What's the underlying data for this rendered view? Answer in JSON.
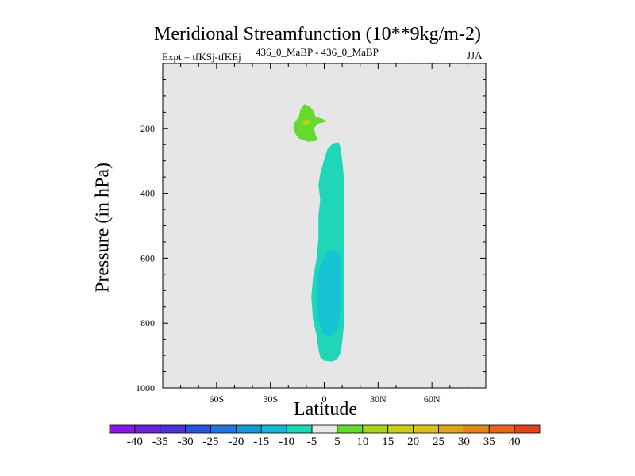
{
  "chart_data": {
    "type": "contour",
    "title": "Meridional Streamfunction (10**9kg/m-2)",
    "left_label": "Expt = tfKSj-tfKEj",
    "center_label": "436_0_MaBP - 436_0_MaBP",
    "right_label": "JJA",
    "xlabel": "Latitude",
    "ylabel": "Pressure (in hPa)",
    "xlim": [
      -90,
      90
    ],
    "ylim": [
      1000,
      0
    ],
    "x_ticks": [
      {
        "value": -60,
        "label": "60S"
      },
      {
        "value": -30,
        "label": "30S"
      },
      {
        "value": 0,
        "label": "0"
      },
      {
        "value": 30,
        "label": "30N"
      },
      {
        "value": 60,
        "label": "60N"
      }
    ],
    "y_ticks": [
      {
        "value": 200,
        "label": "200"
      },
      {
        "value": 400,
        "label": "400"
      },
      {
        "value": 600,
        "label": "600"
      },
      {
        "value": 800,
        "label": "800"
      },
      {
        "value": 1000,
        "label": "1000"
      }
    ],
    "background_color": "#e6e6e6",
    "contour_regions": [
      {
        "level": "5 to 10",
        "color": "#66d92e",
        "points": [
          [
            -16,
            180
          ],
          [
            -14,
            165
          ],
          [
            -13,
            142
          ],
          [
            -11,
            127
          ],
          [
            -8,
            133
          ],
          [
            -6,
            150
          ],
          [
            -5,
            165
          ],
          [
            -1,
            172
          ],
          [
            1,
            178
          ],
          [
            -4,
            185
          ],
          [
            -6,
            200
          ],
          [
            -5,
            220
          ],
          [
            -4,
            237
          ],
          [
            -9,
            240
          ],
          [
            -14,
            230
          ],
          [
            -16,
            215
          ],
          [
            -17,
            197
          ]
        ]
      },
      {
        "level": "10 to 15",
        "color": "#a9d41f",
        "points": [
          [
            -12,
            178
          ],
          [
            -10,
            172
          ],
          [
            -8,
            176
          ],
          [
            -8,
            183
          ],
          [
            -10,
            188
          ],
          [
            -12,
            186
          ]
        ]
      },
      {
        "level": "-10 to -5",
        "color": "#1fd6b9",
        "points": [
          [
            8,
            245
          ],
          [
            9,
            265
          ],
          [
            10,
            310
          ],
          [
            11,
            370
          ],
          [
            11,
            440
          ],
          [
            11,
            530
          ],
          [
            11,
            620
          ],
          [
            11,
            700
          ],
          [
            11,
            790
          ],
          [
            10,
            850
          ],
          [
            9,
            890
          ],
          [
            7,
            912
          ],
          [
            4,
            917
          ],
          [
            0,
            915
          ],
          [
            -2,
            905
          ],
          [
            -3,
            880
          ],
          [
            -4,
            840
          ],
          [
            -6,
            790
          ],
          [
            -7,
            720
          ],
          [
            -6,
            660
          ],
          [
            -4,
            600
          ],
          [
            -3,
            540
          ],
          [
            -3,
            470
          ],
          [
            -2,
            420
          ],
          [
            -3,
            375
          ],
          [
            -2,
            340
          ],
          [
            0,
            300
          ],
          [
            2,
            265
          ],
          [
            5,
            247
          ]
        ]
      },
      {
        "level": "-15 to -10",
        "color": "#15c4d0",
        "points": [
          [
            -3,
            650
          ],
          [
            -1,
            610
          ],
          [
            2,
            580
          ],
          [
            5,
            575
          ],
          [
            9,
            595
          ],
          [
            9,
            650
          ],
          [
            9,
            740
          ],
          [
            8,
            800
          ],
          [
            6,
            830
          ],
          [
            3,
            840
          ],
          [
            -1,
            830
          ],
          [
            -3,
            790
          ],
          [
            -4,
            740
          ],
          [
            -4,
            690
          ]
        ]
      }
    ],
    "colorbar": {
      "levels": [
        -40,
        -35,
        -30,
        -25,
        -20,
        -15,
        -10,
        -5,
        5,
        10,
        15,
        20,
        25,
        30,
        35,
        40
      ],
      "level_labels": [
        "-40",
        "-35",
        "-30",
        "-25",
        "-20",
        "-15",
        "-10",
        "-5",
        "5",
        "10",
        "15",
        "20",
        "25",
        "30",
        "35",
        "40"
      ],
      "colors": [
        "#8a17e6",
        "#6a24d4",
        "#4a36d6",
        "#2a54dc",
        "#1f78de",
        "#1697d8",
        "#14b7d6",
        "#1fd6b9",
        "#e8e8e8",
        "#66d92e",
        "#a9d41f",
        "#c9ce1a",
        "#dbc21a",
        "#e0a51c",
        "#e3871c",
        "#e56620",
        "#e04418"
      ]
    }
  }
}
